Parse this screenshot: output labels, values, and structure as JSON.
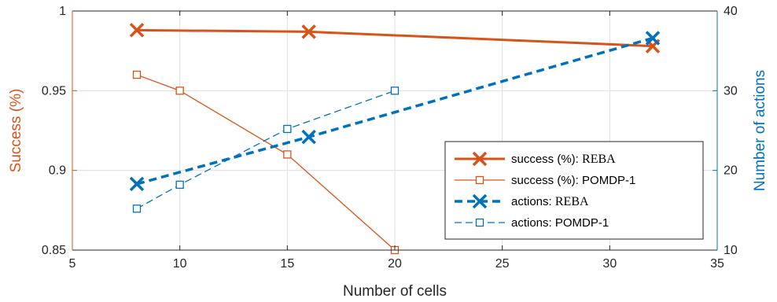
{
  "chart_data": {
    "type": "line",
    "xlabel": "Number of cells",
    "ylabel_left": "Success (%)",
    "ylabel_right": "Number of actions",
    "xlim": [
      5,
      35
    ],
    "ylim_left": [
      0.85,
      1
    ],
    "ylim_right": [
      10,
      40
    ],
    "xticks": [
      "5",
      "10",
      "15",
      "20",
      "25",
      "30",
      "35"
    ],
    "yticks_left": [
      "0.85",
      "0.9",
      "0.95",
      "1"
    ],
    "yticks_right": [
      "10",
      "20",
      "30",
      "40"
    ],
    "grid": true,
    "legend_position": "lower-right",
    "colors": {
      "orange": "#D95319",
      "blue": "#0072BD",
      "axis": "#262626",
      "grid": "#DFDFDF"
    },
    "series": [
      {
        "name_prefix": "success (%): ",
        "name_suffix": "REBA",
        "axis": "left",
        "color": "#D95319",
        "style": "solid-thick",
        "marker": "x",
        "x": [
          8,
          16,
          32
        ],
        "y": [
          0.988,
          0.987,
          0.978
        ]
      },
      {
        "name_prefix": "success (%): ",
        "name_suffix": "POMDP-1",
        "axis": "left",
        "color": "#D95319",
        "style": "solid-thin",
        "marker": "square",
        "x": [
          8,
          10,
          15,
          20
        ],
        "y": [
          0.96,
          0.95,
          0.91,
          0.85
        ]
      },
      {
        "name_prefix": "actions: ",
        "name_suffix": "REBA",
        "axis": "right",
        "color": "#0072BD",
        "style": "dashed-thick",
        "marker": "x",
        "x": [
          8,
          16,
          32
        ],
        "y": [
          18.3,
          24.2,
          36.6
        ]
      },
      {
        "name_prefix": "actions: ",
        "name_suffix": "POMDP-1",
        "axis": "right",
        "color": "#0072BD",
        "style": "dashed-thin",
        "marker": "square",
        "x": [
          8,
          10,
          15,
          20
        ],
        "y": [
          15.2,
          18.2,
          25.2,
          30
        ]
      }
    ]
  }
}
